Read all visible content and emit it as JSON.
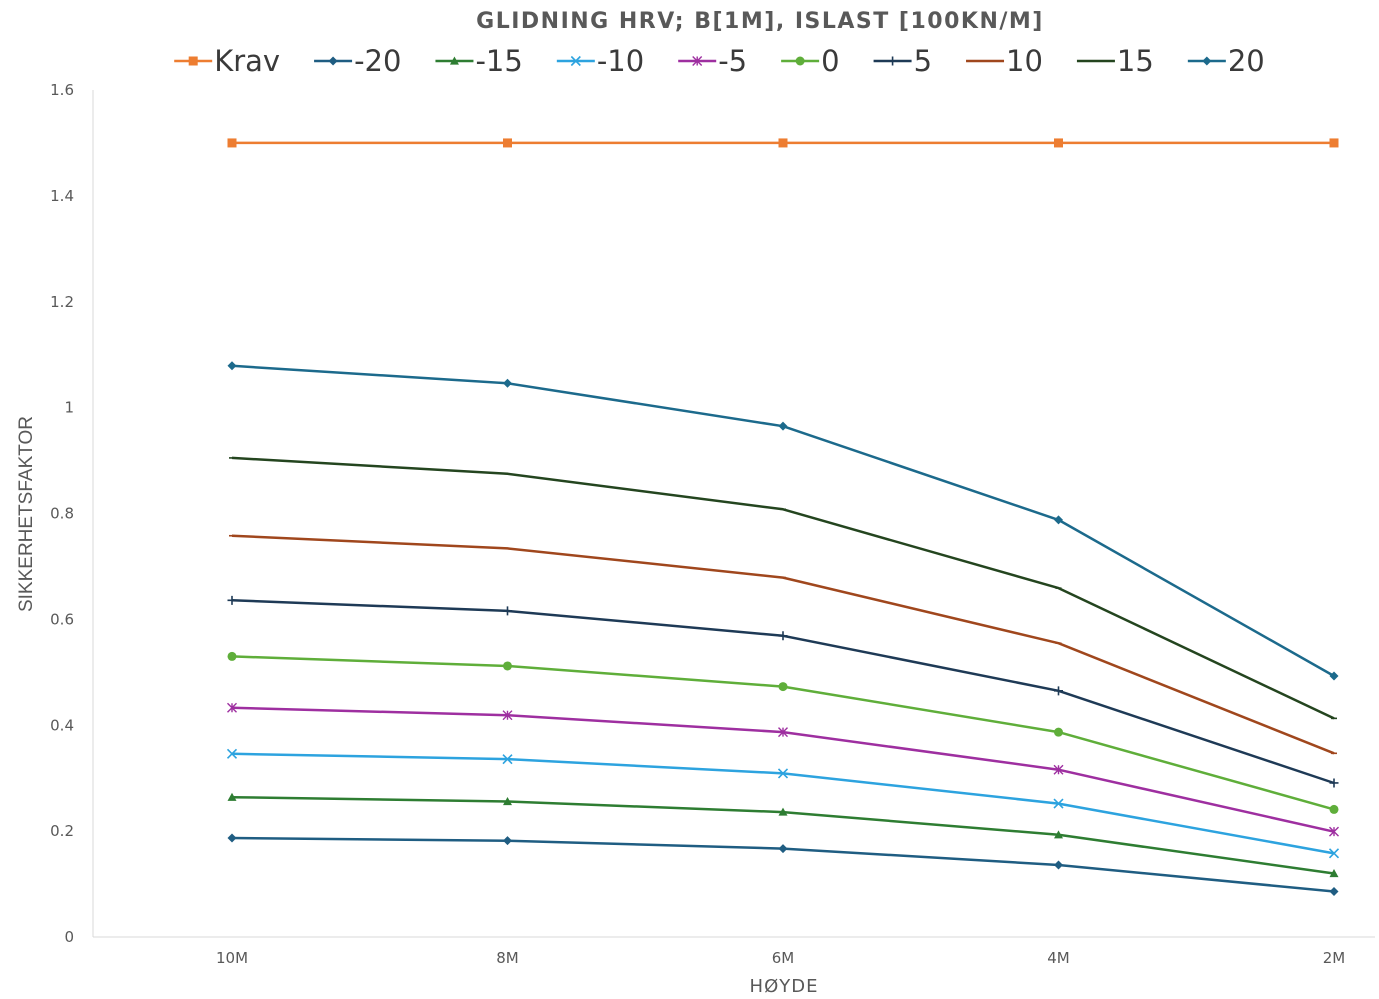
{
  "chart_data": {
    "type": "line",
    "title": "GLIDNING HRV; B[1M], ISLAST [100KN/M]",
    "xlabel": "HØYDE",
    "ylabel": "SIKKERHETSFAKTOR",
    "categories": [
      "10M",
      "8M",
      "6M",
      "4M",
      "2M"
    ],
    "ylim": [
      0,
      1.6
    ],
    "yticks": [
      "0",
      "0.2",
      "0.4",
      "0.6",
      "0.8",
      "1",
      "1.2",
      "1.4",
      "1.6"
    ],
    "grid": false,
    "legend_position": "top",
    "series": [
      {
        "name": "Krav",
        "color": "#ED7D31",
        "marker": "square",
        "values": [
          1.5,
          1.5,
          1.5,
          1.5,
          1.5
        ]
      },
      {
        "name": "-20",
        "color": "#1F5D82",
        "marker": "diamond",
        "values": [
          0.187,
          0.182,
          0.167,
          0.136,
          0.086
        ]
      },
      {
        "name": "-15",
        "color": "#2E7D32",
        "marker": "triangle",
        "values": [
          0.264,
          0.256,
          0.236,
          0.193,
          0.12
        ]
      },
      {
        "name": "-10",
        "color": "#2DA3DF",
        "marker": "x",
        "values": [
          0.346,
          0.336,
          0.309,
          0.252,
          0.158
        ]
      },
      {
        "name": "-5",
        "color": "#9E2FA0",
        "marker": "star",
        "values": [
          0.433,
          0.419,
          0.387,
          0.316,
          0.199
        ]
      },
      {
        "name": "0",
        "color": "#5FAE3A",
        "marker": "circle",
        "values": [
          0.53,
          0.512,
          0.473,
          0.387,
          0.241
        ]
      },
      {
        "name": "5",
        "color": "#1E3A56",
        "marker": "plus",
        "values": [
          0.636,
          0.616,
          0.569,
          0.465,
          0.291
        ]
      },
      {
        "name": "10",
        "color": "#A0471D",
        "marker": "none",
        "values": [
          0.758,
          0.734,
          0.679,
          0.555,
          0.347
        ]
      },
      {
        "name": "15",
        "color": "#24451F",
        "marker": "none",
        "values": [
          0.905,
          0.875,
          0.808,
          0.659,
          0.413
        ]
      },
      {
        "name": "20",
        "color": "#1C6A8C",
        "marker": "diamond",
        "values": [
          1.079,
          1.046,
          0.965,
          0.788,
          0.493
        ]
      }
    ]
  }
}
